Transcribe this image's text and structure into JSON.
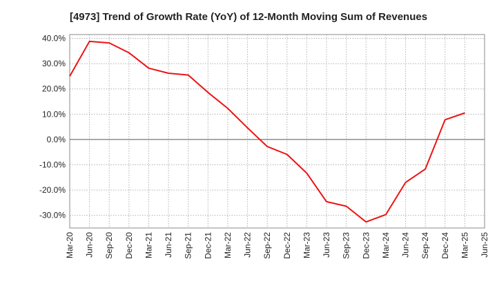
{
  "chart_data": {
    "type": "line",
    "title": "[4973]  Trend of Growth Rate (YoY) of 12-Month Moving Sum of Revenues",
    "xlabel": "",
    "ylabel": "",
    "categories": [
      "Mar-20",
      "Jun-20",
      "Sep-20",
      "Dec-20",
      "Mar-21",
      "Jun-21",
      "Sep-21",
      "Dec-21",
      "Mar-22",
      "Jun-22",
      "Sep-22",
      "Dec-22",
      "Mar-23",
      "Jun-23",
      "Sep-23",
      "Dec-23",
      "Mar-24",
      "Jun-24",
      "Sep-24",
      "Dec-24",
      "Mar-25",
      "Jun-25"
    ],
    "ytick_labels": [
      "40.0%",
      "30.0%",
      "20.0%",
      "10.0%",
      "0.0%",
      "-10.0%",
      "-20.0%",
      "-30.0%"
    ],
    "yticks": [
      40,
      30,
      20,
      10,
      0,
      -10,
      -20,
      -30
    ],
    "ylim": [
      -35,
      41.5
    ],
    "grid": true,
    "color": "#ee1111",
    "series": [
      {
        "values": [
          25.0,
          38.8,
          38.2,
          34.3,
          28.2,
          26.2,
          25.5,
          18.6,
          12.3,
          4.6,
          -2.8,
          -5.9,
          -13.3,
          -24.6,
          -26.4,
          -32.6,
          -29.7,
          -17.0,
          -11.7,
          7.8,
          10.5,
          null
        ]
      }
    ]
  }
}
